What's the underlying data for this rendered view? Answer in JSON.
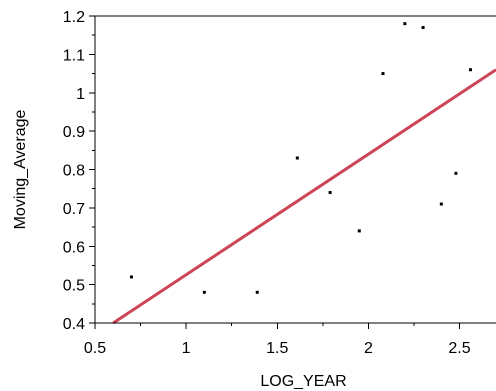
{
  "chart_data": {
    "type": "scatter",
    "xlabel": "LOG_YEAR",
    "ylabel": "Moving_Average",
    "xlim": [
      0.5,
      2.7
    ],
    "ylim": [
      0.4,
      1.2
    ],
    "x_ticks": [
      "0.5",
      "1",
      "1.5",
      "2",
      "2.5"
    ],
    "x_tick_values": [
      0.5,
      1.0,
      1.5,
      2.0,
      2.5
    ],
    "y_ticks": [
      "0.4",
      "0.5",
      "0.6",
      "0.7",
      "0.8",
      "0.9",
      "1",
      "1.1",
      "1.2"
    ],
    "y_tick_values": [
      0.4,
      0.5,
      0.6,
      0.7,
      0.8,
      0.9,
      1.0,
      1.1,
      1.2
    ],
    "grid": false,
    "points": [
      {
        "x": 0.7,
        "y": 0.52
      },
      {
        "x": 1.1,
        "y": 0.48
      },
      {
        "x": 1.39,
        "y": 0.48
      },
      {
        "x": 1.61,
        "y": 0.83
      },
      {
        "x": 1.79,
        "y": 0.74
      },
      {
        "x": 1.95,
        "y": 0.64
      },
      {
        "x": 2.08,
        "y": 1.05
      },
      {
        "x": 2.2,
        "y": 1.18
      },
      {
        "x": 2.3,
        "y": 1.17
      },
      {
        "x": 2.4,
        "y": 0.71
      },
      {
        "x": 2.48,
        "y": 0.79
      },
      {
        "x": 2.56,
        "y": 1.06
      }
    ],
    "fit_line": {
      "x": [
        0.6,
        2.7
      ],
      "y": [
        0.4,
        1.06
      ]
    },
    "colors": {
      "points": "#000000",
      "fit_line": "#cc4455",
      "axes": "#000000"
    }
  }
}
